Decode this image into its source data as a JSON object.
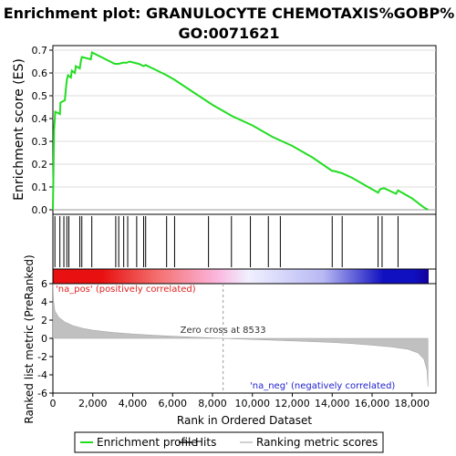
{
  "chart_data": {
    "type": "line",
    "title": "Enrichment plot: GRANULOCYTE CHEMOTAXIS%GOBP%",
    "subtitle": "GO:0071621",
    "es_panel": {
      "ylabel": "Enrichment score (ES)",
      "ylim": [
        -0.02,
        0.72
      ],
      "yticks": [
        0.0,
        0.1,
        0.2,
        0.3,
        0.4,
        0.5,
        0.6,
        0.7
      ],
      "ytick_labels": [
        "0.0",
        "0.1",
        "0.2",
        "0.3",
        "0.4",
        "0.5",
        "0.6",
        "0.7"
      ],
      "series": [
        {
          "name": "Enrichment profile",
          "color": "#22dd22",
          "points": [
            [
              0,
              0.0
            ],
            [
              30,
              0.18
            ],
            [
              60,
              0.35
            ],
            [
              120,
              0.43
            ],
            [
              350,
              0.42
            ],
            [
              380,
              0.47
            ],
            [
              600,
              0.48
            ],
            [
              640,
              0.52
            ],
            [
              700,
              0.57
            ],
            [
              760,
              0.59
            ],
            [
              900,
              0.58
            ],
            [
              950,
              0.61
            ],
            [
              1100,
              0.6
            ],
            [
              1150,
              0.63
            ],
            [
              1350,
              0.62
            ],
            [
              1400,
              0.65
            ],
            [
              1450,
              0.67
            ],
            [
              1900,
              0.66
            ],
            [
              1960,
              0.69
            ],
            [
              3100,
              0.64
            ],
            [
              3200,
              0.64
            ],
            [
              3300,
              0.64
            ],
            [
              3500,
              0.645
            ],
            [
              3700,
              0.645
            ],
            [
              3850,
              0.65
            ],
            [
              4300,
              0.64
            ],
            [
              4550,
              0.63
            ],
            [
              4650,
              0.635
            ],
            [
              5000,
              0.62
            ],
            [
              5700,
              0.59
            ],
            [
              6100,
              0.57
            ],
            [
              8000,
              0.46
            ],
            [
              9000,
              0.41
            ],
            [
              10000,
              0.37
            ],
            [
              11000,
              0.32
            ],
            [
              12000,
              0.28
            ],
            [
              13000,
              0.23
            ],
            [
              14000,
              0.17
            ],
            [
              14100,
              0.17
            ],
            [
              14500,
              0.16
            ],
            [
              15000,
              0.14
            ],
            [
              16000,
              0.09
            ],
            [
              16300,
              0.075
            ],
            [
              16400,
              0.09
            ],
            [
              16600,
              0.095
            ],
            [
              17200,
              0.07
            ],
            [
              17300,
              0.085
            ],
            [
              17500,
              0.075
            ],
            [
              18000,
              0.05
            ],
            [
              18600,
              0.01
            ],
            [
              18800,
              0.0
            ]
          ]
        }
      ]
    },
    "hits_panel": {
      "name": "Hits",
      "positions": [
        100,
        350,
        550,
        700,
        800,
        1350,
        1450,
        1950,
        3150,
        3300,
        3550,
        3750,
        4200,
        4550,
        4650,
        5700,
        6100,
        7800,
        8950,
        9900,
        10800,
        11400,
        14000,
        14500,
        16300,
        16500,
        17300
      ]
    },
    "ranked_panel": {
      "name": "Ranking metric scores",
      "ylabel": "Ranked list metric (PreRanked)",
      "ylim": [
        -6,
        6
      ],
      "yticks": [
        -6,
        -4,
        -2,
        0,
        2,
        4,
        6
      ],
      "ytick_labels": [
        "-6",
        "-4",
        "-2",
        "0",
        "2",
        "4",
        "6"
      ],
      "points": [
        [
          0,
          6.0
        ],
        [
          30,
          4.2
        ],
        [
          100,
          3.0
        ],
        [
          300,
          2.3
        ],
        [
          600,
          1.8
        ],
        [
          1000,
          1.4
        ],
        [
          1500,
          1.1
        ],
        [
          2000,
          0.9
        ],
        [
          3000,
          0.65
        ],
        [
          4000,
          0.48
        ],
        [
          5000,
          0.35
        ],
        [
          6000,
          0.24
        ],
        [
          7000,
          0.14
        ],
        [
          8000,
          0.05
        ],
        [
          8533,
          0.0
        ],
        [
          9000,
          -0.05
        ],
        [
          10000,
          -0.12
        ],
        [
          11000,
          -0.2
        ],
        [
          12000,
          -0.28
        ],
        [
          13000,
          -0.36
        ],
        [
          14000,
          -0.45
        ],
        [
          15000,
          -0.58
        ],
        [
          16000,
          -0.75
        ],
        [
          17000,
          -0.95
        ],
        [
          17800,
          -1.2
        ],
        [
          18300,
          -1.6
        ],
        [
          18600,
          -2.3
        ],
        [
          18750,
          -3.5
        ],
        [
          18800,
          -5.3
        ]
      ],
      "zero_cross_label": "Zero cross at 8533",
      "zero_cross": 8533,
      "pos_label": "'na_pos' (positively correlated)",
      "neg_label": "'na_neg' (negatively correlated)"
    },
    "heatmap_gradient": {
      "pos_color": "#e81010",
      "neutral_color": "#f0f0ff",
      "neg_color": "#1010c0",
      "end_dark": "#14009a"
    },
    "x_axis": {
      "xlabel": "Rank in Ordered Dataset",
      "xlim": [
        0,
        19200
      ],
      "xticks": [
        0,
        2000,
        4000,
        6000,
        8000,
        10000,
        12000,
        14000,
        16000,
        18000
      ],
      "xtick_labels": [
        "0",
        "2,000",
        "4,000",
        "6,000",
        "8,000",
        "10,000",
        "12,000",
        "14,000",
        "16,000",
        "18,000"
      ]
    },
    "legend": {
      "placement": "bottom",
      "items": [
        {
          "label": "Enrichment profile",
          "color": "#22dd22"
        },
        {
          "label": "Hits",
          "color": "#000000"
        },
        {
          "label": "Ranking metric scores",
          "color": "#c0c0c0"
        }
      ]
    }
  }
}
